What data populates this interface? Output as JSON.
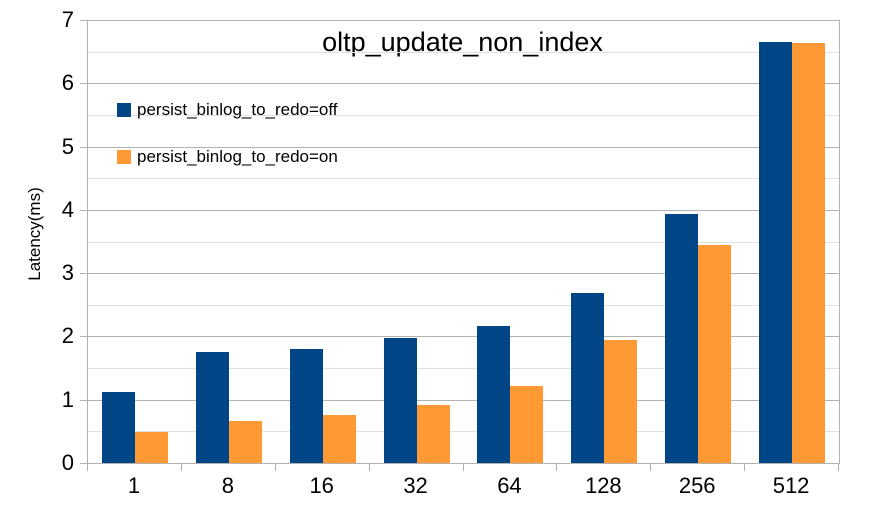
{
  "chart_data": {
    "type": "bar",
    "title": "oltp_update_non_index",
    "xlabel": "",
    "ylabel": "Latency(ms)",
    "categories": [
      "1",
      "8",
      "16",
      "32",
      "64",
      "128",
      "256",
      "512"
    ],
    "series": [
      {
        "name": "persist_binlog_to_redo=off",
        "color": "#004586",
        "values": [
          1.13,
          1.76,
          1.8,
          1.98,
          2.17,
          2.68,
          3.93,
          6.65
        ]
      },
      {
        "name": "persist_binlog_to_redo=on",
        "color": "#FF9933",
        "values": [
          0.49,
          0.67,
          0.76,
          0.91,
          1.21,
          1.95,
          3.45,
          6.64
        ]
      }
    ],
    "ylim": [
      0,
      7
    ],
    "y_major_step": 1,
    "y_minor_step": 0.5,
    "grid": true,
    "legend_position": "top-left",
    "colors": {
      "axis": "#b2b2b2",
      "gridline_major": "#b2b2b2",
      "gridline_minor": "#e0e0e0",
      "text": "#000000",
      "background": "#ffffff"
    }
  }
}
